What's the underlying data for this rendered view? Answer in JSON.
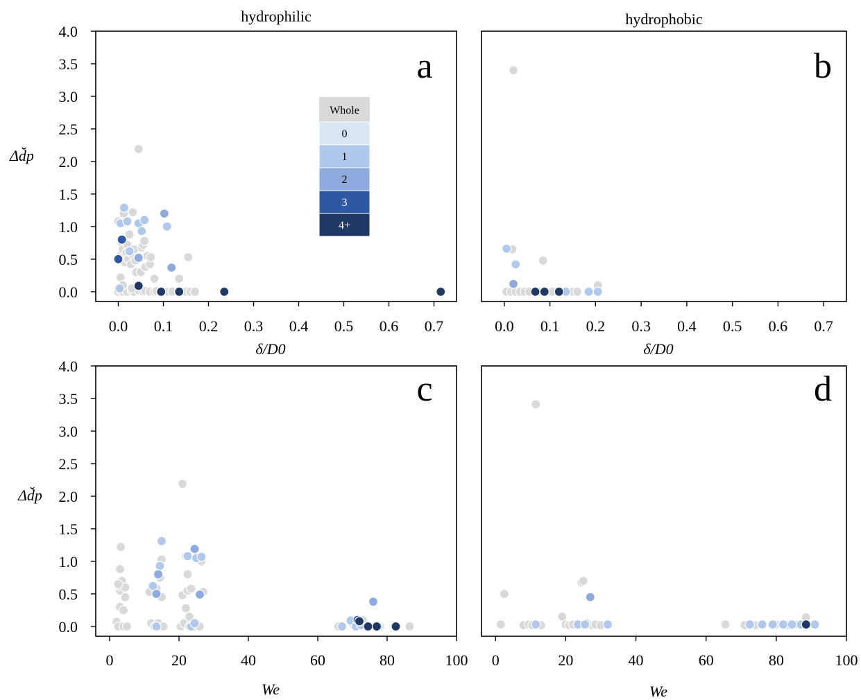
{
  "figure": {
    "legend": {
      "title": "Whole",
      "entries": [
        {
          "label": "0",
          "color": "#d9e4f5"
        },
        {
          "label": "1",
          "color": "#b0c8ec"
        },
        {
          "label": "2",
          "color": "#8eaade"
        },
        {
          "label": "3",
          "color": "#2f58a3"
        },
        {
          "label": "4+",
          "color": "#203864"
        }
      ],
      "title_color": "#d9d9d9",
      "placement": "upper-center of panel a"
    },
    "panel_letters": [
      "a",
      "b",
      "c",
      "d"
    ],
    "panel_titles": [
      "hydrophilic",
      "hydrophobic",
      "",
      ""
    ]
  },
  "colors": {
    "grey": "#d9d9d9",
    "c1": "#b0c8ec",
    "c2": "#8eaade",
    "c3": "#2f58a3",
    "c4": "#203864"
  },
  "chart_data": [
    {
      "panel": "a",
      "type": "scatter",
      "title": "hydrophilic",
      "xlabel": "δ/D0",
      "ylabel": "Δd̆p",
      "xlim": [
        -0.05,
        0.75
      ],
      "ylim": [
        -0.15,
        4.0
      ],
      "xticks": [
        "0.0",
        "0.1",
        "0.2",
        "0.3",
        "0.4",
        "0.5",
        "0.6",
        "0.7"
      ],
      "yticks": [
        "0.0",
        "0.5",
        "1.0",
        "1.5",
        "2.0",
        "2.5",
        "3.0",
        "3.5",
        "4.0"
      ],
      "grid": false,
      "points": [
        {
          "x": 0.0,
          "y": 0.0,
          "c": "grey"
        },
        {
          "x": 0.005,
          "y": 0.02,
          "c": "grey"
        },
        {
          "x": 0.01,
          "y": 0.0,
          "c": "grey"
        },
        {
          "x": 0.015,
          "y": 0.03,
          "c": "grey"
        },
        {
          "x": 0.02,
          "y": 0.0,
          "c": "grey"
        },
        {
          "x": 0.03,
          "y": 0.01,
          "c": "grey"
        },
        {
          "x": 0.035,
          "y": 0.0,
          "c": "grey"
        },
        {
          "x": 0.045,
          "y": 0.02,
          "c": "grey"
        },
        {
          "x": 0.055,
          "y": 0.0,
          "c": "grey"
        },
        {
          "x": 0.06,
          "y": 0.01,
          "c": "grey"
        },
        {
          "x": 0.07,
          "y": 0.0,
          "c": "grey"
        },
        {
          "x": 0.08,
          "y": 0.0,
          "c": "grey"
        },
        {
          "x": 0.085,
          "y": 0.01,
          "c": "grey"
        },
        {
          "x": 0.095,
          "y": 0.0,
          "c": "grey"
        },
        {
          "x": 0.11,
          "y": 0.0,
          "c": "grey"
        },
        {
          "x": 0.12,
          "y": 0.0,
          "c": "grey"
        },
        {
          "x": 0.135,
          "y": 0.0,
          "c": "grey"
        },
        {
          "x": 0.15,
          "y": 0.0,
          "c": "grey"
        },
        {
          "x": 0.16,
          "y": 0.0,
          "c": "grey"
        },
        {
          "x": 0.17,
          "y": 0.0,
          "c": "grey"
        },
        {
          "x": 0.0,
          "y": 1.08,
          "c": "grey"
        },
        {
          "x": 0.005,
          "y": 0.55,
          "c": "grey"
        },
        {
          "x": 0.008,
          "y": 0.75,
          "c": "grey"
        },
        {
          "x": 0.01,
          "y": 0.65,
          "c": "grey"
        },
        {
          "x": 0.012,
          "y": 1.2,
          "c": "grey"
        },
        {
          "x": 0.015,
          "y": 0.45,
          "c": "grey"
        },
        {
          "x": 0.018,
          "y": 0.6,
          "c": "grey"
        },
        {
          "x": 0.02,
          "y": 0.72,
          "c": "grey"
        },
        {
          "x": 0.022,
          "y": 0.5,
          "c": "grey"
        },
        {
          "x": 0.025,
          "y": 0.88,
          "c": "grey"
        },
        {
          "x": 0.028,
          "y": 0.42,
          "c": "grey"
        },
        {
          "x": 0.03,
          "y": 0.58,
          "c": "grey"
        },
        {
          "x": 0.032,
          "y": 1.22,
          "c": "grey"
        },
        {
          "x": 0.035,
          "y": 0.65,
          "c": "grey"
        },
        {
          "x": 0.038,
          "y": 0.48,
          "c": "grey"
        },
        {
          "x": 0.04,
          "y": 0.3,
          "c": "grey"
        },
        {
          "x": 0.045,
          "y": 2.19,
          "c": "grey"
        },
        {
          "x": 0.048,
          "y": 1.05,
          "c": "grey"
        },
        {
          "x": 0.05,
          "y": 0.3,
          "c": "grey"
        },
        {
          "x": 0.052,
          "y": 0.68,
          "c": "grey"
        },
        {
          "x": 0.055,
          "y": 0.72,
          "c": "grey"
        },
        {
          "x": 0.058,
          "y": 0.78,
          "c": "grey"
        },
        {
          "x": 0.06,
          "y": 0.38,
          "c": "grey"
        },
        {
          "x": 0.065,
          "y": 0.55,
          "c": "grey"
        },
        {
          "x": 0.07,
          "y": 0.42,
          "c": "grey"
        },
        {
          "x": 0.072,
          "y": 0.53,
          "c": "grey"
        },
        {
          "x": 0.08,
          "y": 0.2,
          "c": "grey"
        },
        {
          "x": 0.005,
          "y": 0.22,
          "c": "grey"
        },
        {
          "x": 0.01,
          "y": 0.1,
          "c": "grey"
        },
        {
          "x": 0.03,
          "y": 0.05,
          "c": "grey"
        },
        {
          "x": 0.135,
          "y": 0.2,
          "c": "grey"
        },
        {
          "x": 0.155,
          "y": 0.53,
          "c": "grey"
        },
        {
          "x": 0.005,
          "y": 1.05,
          "c": "c1"
        },
        {
          "x": 0.013,
          "y": 1.29,
          "c": "c1"
        },
        {
          "x": 0.02,
          "y": 1.08,
          "c": "c1"
        },
        {
          "x": 0.045,
          "y": 1.05,
          "c": "c1"
        },
        {
          "x": 0.052,
          "y": 0.93,
          "c": "c1"
        },
        {
          "x": 0.058,
          "y": 1.1,
          "c": "c1"
        },
        {
          "x": 0.025,
          "y": 0.62,
          "c": "c1"
        },
        {
          "x": 0.003,
          "y": 0.05,
          "c": "c1"
        },
        {
          "x": 0.108,
          "y": 1.0,
          "c": "c1"
        },
        {
          "x": 0.102,
          "y": 1.2,
          "c": "c2"
        },
        {
          "x": 0.118,
          "y": 0.37,
          "c": "c2"
        },
        {
          "x": 0.045,
          "y": 0.52,
          "c": "c2"
        },
        {
          "x": 0.008,
          "y": 0.8,
          "c": "c3"
        },
        {
          "x": 0.0,
          "y": 0.5,
          "c": "c3"
        },
        {
          "x": 0.045,
          "y": 0.09,
          "c": "c4"
        },
        {
          "x": 0.095,
          "y": 0.0,
          "c": "c4"
        },
        {
          "x": 0.135,
          "y": 0.0,
          "c": "c4"
        },
        {
          "x": 0.235,
          "y": 0.0,
          "c": "c4"
        },
        {
          "x": 0.715,
          "y": 0.0,
          "c": "c4"
        }
      ]
    },
    {
      "panel": "b",
      "type": "scatter",
      "title": "hydrophobic",
      "xlabel": "δ/D0",
      "ylabel": "",
      "xlim": [
        -0.05,
        0.75
      ],
      "ylim": [
        -0.15,
        4.0
      ],
      "xticks": [
        "0.0",
        "0.1",
        "0.2",
        "0.3",
        "0.4",
        "0.5",
        "0.6",
        "0.7"
      ],
      "yticks": [],
      "grid": false,
      "points": [
        {
          "x": 0.02,
          "y": 3.4,
          "c": "grey"
        },
        {
          "x": 0.018,
          "y": 0.65,
          "c": "grey"
        },
        {
          "x": 0.085,
          "y": 0.48,
          "c": "grey"
        },
        {
          "x": 0.205,
          "y": 0.1,
          "c": "grey"
        },
        {
          "x": 0.005,
          "y": 0.0,
          "c": "grey"
        },
        {
          "x": 0.015,
          "y": 0.0,
          "c": "grey"
        },
        {
          "x": 0.025,
          "y": 0.0,
          "c": "grey"
        },
        {
          "x": 0.035,
          "y": 0.0,
          "c": "grey"
        },
        {
          "x": 0.045,
          "y": 0.0,
          "c": "grey"
        },
        {
          "x": 0.055,
          "y": 0.0,
          "c": "grey"
        },
        {
          "x": 0.075,
          "y": 0.0,
          "c": "grey"
        },
        {
          "x": 0.095,
          "y": 0.0,
          "c": "grey"
        },
        {
          "x": 0.105,
          "y": 0.0,
          "c": "grey"
        },
        {
          "x": 0.125,
          "y": 0.0,
          "c": "grey"
        },
        {
          "x": 0.15,
          "y": 0.0,
          "c": "grey"
        },
        {
          "x": 0.16,
          "y": 0.0,
          "c": "grey"
        },
        {
          "x": 0.005,
          "y": 0.66,
          "c": "c1"
        },
        {
          "x": 0.025,
          "y": 0.42,
          "c": "c1"
        },
        {
          "x": 0.185,
          "y": 0.0,
          "c": "c1"
        },
        {
          "x": 0.205,
          "y": 0.0,
          "c": "c1"
        },
        {
          "x": 0.135,
          "y": 0.0,
          "c": "c1"
        },
        {
          "x": 0.02,
          "y": 0.12,
          "c": "c2"
        },
        {
          "x": 0.068,
          "y": 0.0,
          "c": "c4"
        },
        {
          "x": 0.088,
          "y": 0.0,
          "c": "c4"
        },
        {
          "x": 0.12,
          "y": 0.0,
          "c": "c4"
        }
      ]
    },
    {
      "panel": "c",
      "type": "scatter",
      "title": "",
      "xlabel": "We",
      "ylabel": "Δd̆p",
      "xlim": [
        -4,
        100
      ],
      "ylim": [
        -0.15,
        4.0
      ],
      "xticks": [
        "0",
        "20",
        "40",
        "60",
        "80",
        "100"
      ],
      "yticks": [
        "0.0",
        "0.5",
        "1.0",
        "1.5",
        "2.0",
        "2.5",
        "3.0",
        "3.5",
        "4.0"
      ],
      "grid": false,
      "points": [
        {
          "x": 2,
          "y": 0.07,
          "c": "grey"
        },
        {
          "x": 2.5,
          "y": 0.0,
          "c": "grey"
        },
        {
          "x": 3,
          "y": 0.3,
          "c": "grey"
        },
        {
          "x": 3,
          "y": 0.55,
          "c": "grey"
        },
        {
          "x": 3,
          "y": 0.62,
          "c": "grey"
        },
        {
          "x": 3,
          "y": 0.88,
          "c": "grey"
        },
        {
          "x": 3.2,
          "y": 1.22,
          "c": "grey"
        },
        {
          "x": 3.5,
          "y": 0.7,
          "c": "grey"
        },
        {
          "x": 4,
          "y": 0.0,
          "c": "grey"
        },
        {
          "x": 4,
          "y": 0.25,
          "c": "grey"
        },
        {
          "x": 4.5,
          "y": 0.45,
          "c": "grey"
        },
        {
          "x": 4.5,
          "y": 0.6,
          "c": "grey"
        },
        {
          "x": 5,
          "y": 0.0,
          "c": "grey"
        },
        {
          "x": 2.5,
          "y": 0.65,
          "c": "grey"
        },
        {
          "x": 11.5,
          "y": 0.53,
          "c": "grey"
        },
        {
          "x": 12,
          "y": 0.05,
          "c": "grey"
        },
        {
          "x": 13,
          "y": 0.0,
          "c": "grey"
        },
        {
          "x": 14,
          "y": 0.05,
          "c": "grey"
        },
        {
          "x": 14.5,
          "y": 0.75,
          "c": "grey"
        },
        {
          "x": 15,
          "y": 1.03,
          "c": "grey"
        },
        {
          "x": 15,
          "y": 0.45,
          "c": "grey"
        },
        {
          "x": 15.5,
          "y": 0.0,
          "c": "grey"
        },
        {
          "x": 13.5,
          "y": 0.58,
          "c": "grey"
        },
        {
          "x": 20.5,
          "y": 0.0,
          "c": "grey"
        },
        {
          "x": 21,
          "y": 2.19,
          "c": "grey"
        },
        {
          "x": 21,
          "y": 0.48,
          "c": "grey"
        },
        {
          "x": 21.5,
          "y": 0.05,
          "c": "grey"
        },
        {
          "x": 22,
          "y": 1.08,
          "c": "grey"
        },
        {
          "x": 22,
          "y": 0.28,
          "c": "grey"
        },
        {
          "x": 22.5,
          "y": 0.55,
          "c": "grey"
        },
        {
          "x": 22.5,
          "y": 0.8,
          "c": "grey"
        },
        {
          "x": 23,
          "y": 0.0,
          "c": "grey"
        },
        {
          "x": 23.5,
          "y": 0.58,
          "c": "grey"
        },
        {
          "x": 24.5,
          "y": 0.0,
          "c": "grey"
        },
        {
          "x": 25,
          "y": 0.05,
          "c": "grey"
        },
        {
          "x": 26,
          "y": 0.0,
          "c": "grey"
        },
        {
          "x": 26.5,
          "y": 1.0,
          "c": "grey"
        },
        {
          "x": 27,
          "y": 0.53,
          "c": "grey"
        },
        {
          "x": 23,
          "y": 0.15,
          "c": "grey"
        },
        {
          "x": 66,
          "y": 0.0,
          "c": "grey"
        },
        {
          "x": 70,
          "y": 0.05,
          "c": "grey"
        },
        {
          "x": 73,
          "y": 0.1,
          "c": "grey"
        },
        {
          "x": 77,
          "y": 0.0,
          "c": "grey"
        },
        {
          "x": 78,
          "y": 0.0,
          "c": "grey"
        },
        {
          "x": 86.5,
          "y": 0.0,
          "c": "grey"
        },
        {
          "x": 75,
          "y": 0.0,
          "c": "grey"
        },
        {
          "x": 15,
          "y": 1.31,
          "c": "c1"
        },
        {
          "x": 14.5,
          "y": 0.93,
          "c": "c1"
        },
        {
          "x": 12.5,
          "y": 0.62,
          "c": "c1"
        },
        {
          "x": 13.5,
          "y": 0.0,
          "c": "c1"
        },
        {
          "x": 22.5,
          "y": 1.08,
          "c": "c1"
        },
        {
          "x": 23.5,
          "y": 0.0,
          "c": "c1"
        },
        {
          "x": 25,
          "y": 1.05,
          "c": "c1"
        },
        {
          "x": 26.5,
          "y": 1.07,
          "c": "c1"
        },
        {
          "x": 24.5,
          "y": 0.05,
          "c": "c1"
        },
        {
          "x": 67,
          "y": 0.0,
          "c": "c1"
        },
        {
          "x": 69.5,
          "y": 0.09,
          "c": "c1"
        },
        {
          "x": 71,
          "y": 0.0,
          "c": "c1"
        },
        {
          "x": 77.5,
          "y": 0.0,
          "c": "c1"
        },
        {
          "x": 72.5,
          "y": 0.02,
          "c": "c1"
        },
        {
          "x": 24.5,
          "y": 1.19,
          "c": "c2"
        },
        {
          "x": 14,
          "y": 0.8,
          "c": "c2"
        },
        {
          "x": 13.5,
          "y": 0.5,
          "c": "c2"
        },
        {
          "x": 26,
          "y": 0.49,
          "c": "c2"
        },
        {
          "x": 76,
          "y": 0.38,
          "c": "c2"
        },
        {
          "x": 71.5,
          "y": 0.1,
          "c": "c3"
        },
        {
          "x": 72,
          "y": 0.08,
          "c": "c4"
        },
        {
          "x": 74.5,
          "y": 0.0,
          "c": "c4"
        },
        {
          "x": 77,
          "y": 0.0,
          "c": "c4"
        },
        {
          "x": 82.5,
          "y": 0.0,
          "c": "c4"
        }
      ]
    },
    {
      "panel": "d",
      "type": "scatter",
      "title": "",
      "xlabel": "We",
      "ylabel": "",
      "xlim": [
        -4,
        100
      ],
      "ylim": [
        -0.15,
        4.0
      ],
      "xticks": [
        "0",
        "20",
        "40",
        "60",
        "80",
        "100"
      ],
      "yticks": [],
      "grid": false,
      "points": [
        {
          "x": 11.5,
          "y": 3.41,
          "c": "grey"
        },
        {
          "x": 2.5,
          "y": 0.5,
          "c": "grey"
        },
        {
          "x": 1.5,
          "y": 0.03,
          "c": "grey"
        },
        {
          "x": 8,
          "y": 0.02,
          "c": "grey"
        },
        {
          "x": 9.5,
          "y": 0.03,
          "c": "grey"
        },
        {
          "x": 10.5,
          "y": 0.02,
          "c": "grey"
        },
        {
          "x": 12.5,
          "y": 0.03,
          "c": "grey"
        },
        {
          "x": 13,
          "y": 0.02,
          "c": "grey"
        },
        {
          "x": 19,
          "y": 0.15,
          "c": "grey"
        },
        {
          "x": 20,
          "y": 0.03,
          "c": "grey"
        },
        {
          "x": 21,
          "y": 0.02,
          "c": "grey"
        },
        {
          "x": 22,
          "y": 0.03,
          "c": "grey"
        },
        {
          "x": 24.5,
          "y": 0.68,
          "c": "grey"
        },
        {
          "x": 25,
          "y": 0.7,
          "c": "grey"
        },
        {
          "x": 26,
          "y": 0.05,
          "c": "grey"
        },
        {
          "x": 27.5,
          "y": 0.02,
          "c": "grey"
        },
        {
          "x": 28.5,
          "y": 0.03,
          "c": "grey"
        },
        {
          "x": 30,
          "y": 0.02,
          "c": "grey"
        },
        {
          "x": 65.5,
          "y": 0.03,
          "c": "grey"
        },
        {
          "x": 71,
          "y": 0.02,
          "c": "grey"
        },
        {
          "x": 74,
          "y": 0.02,
          "c": "grey"
        },
        {
          "x": 80,
          "y": 0.03,
          "c": "grey"
        },
        {
          "x": 83,
          "y": 0.02,
          "c": "grey"
        },
        {
          "x": 86,
          "y": 0.03,
          "c": "grey"
        },
        {
          "x": 88.5,
          "y": 0.14,
          "c": "grey"
        },
        {
          "x": 11.5,
          "y": 0.03,
          "c": "c1"
        },
        {
          "x": 23.5,
          "y": 0.03,
          "c": "c1"
        },
        {
          "x": 25.5,
          "y": 0.03,
          "c": "c1"
        },
        {
          "x": 32,
          "y": 0.03,
          "c": "c1"
        },
        {
          "x": 72.5,
          "y": 0.03,
          "c": "c1"
        },
        {
          "x": 76,
          "y": 0.03,
          "c": "c1"
        },
        {
          "x": 79,
          "y": 0.03,
          "c": "c1"
        },
        {
          "x": 82,
          "y": 0.03,
          "c": "c1"
        },
        {
          "x": 84.5,
          "y": 0.03,
          "c": "c1"
        },
        {
          "x": 87,
          "y": 0.03,
          "c": "c1"
        },
        {
          "x": 91,
          "y": 0.03,
          "c": "c1"
        },
        {
          "x": 27,
          "y": 0.45,
          "c": "c2"
        },
        {
          "x": 88.5,
          "y": 0.03,
          "c": "c4"
        }
      ]
    }
  ]
}
